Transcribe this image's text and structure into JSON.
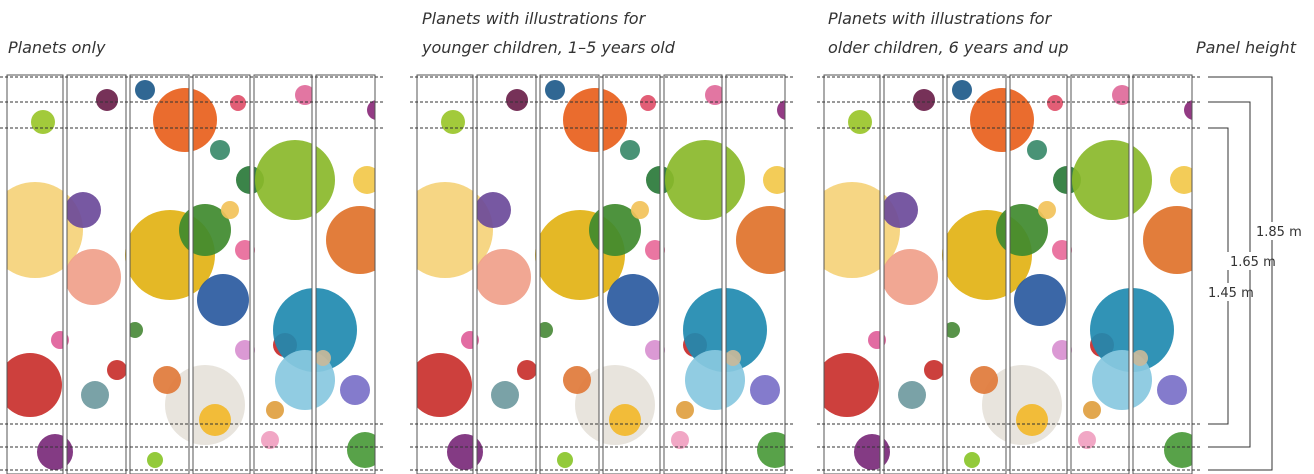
{
  "groups": [
    {
      "title_lines": [
        "Planets only"
      ]
    },
    {
      "title_lines": [
        "Planets with illustrations for",
        "younger children, 1–5 years old"
      ]
    },
    {
      "title_lines": [
        "Planets with illustrations for",
        "older children, 6 years and up"
      ]
    }
  ],
  "panel_height": {
    "label": "Panel height",
    "measurements": [
      "1.85 m",
      "1.65 m",
      "1.45 m"
    ]
  }
}
